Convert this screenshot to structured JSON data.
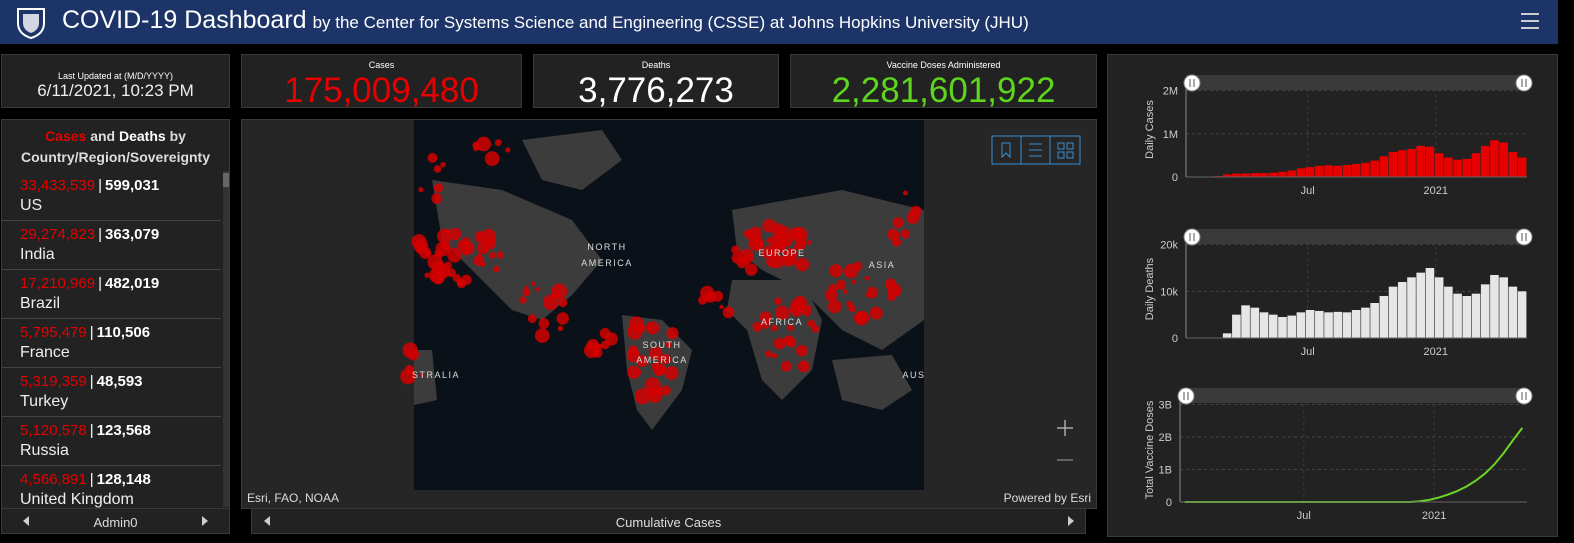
{
  "header": {
    "title": "COVID-19 Dashboard",
    "subtitle": "by the Center for Systems Science and Engineering (CSSE) at Johns Hopkins University (JHU)"
  },
  "last_updated": {
    "label": "Last Updated at (M/D/YYYY)",
    "value": "6/11/2021, 10:23 PM"
  },
  "stats": {
    "cases": {
      "label": "Cases",
      "value": "175,009,480"
    },
    "deaths": {
      "label": "Deaths",
      "value": "3,776,273"
    },
    "vaccines": {
      "label": "Vaccine Doses Administered",
      "value": "2,281,601,922"
    }
  },
  "country_list": {
    "title_cases": "Cases",
    "title_and": "and",
    "title_deaths": "Deaths",
    "title_rest": "by Country/Region/Sovereignty",
    "separator": "|",
    "rows": [
      {
        "cases": "33,433,539",
        "deaths": "599,031",
        "name": "US"
      },
      {
        "cases": "29,274,823",
        "deaths": "363,079",
        "name": "India"
      },
      {
        "cases": "17,210,969",
        "deaths": "482,019",
        "name": "Brazil"
      },
      {
        "cases": "5,795,479",
        "deaths": "110,506",
        "name": "France"
      },
      {
        "cases": "5,319,359",
        "deaths": "48,593",
        "name": "Turkey"
      },
      {
        "cases": "5,120,578",
        "deaths": "123,568",
        "name": "Russia"
      },
      {
        "cases": "4,566,891",
        "deaths": "128,148",
        "name": "United Kingdom"
      }
    ],
    "footer": "Admin0"
  },
  "map": {
    "labels": [
      "NORTH",
      "AMERICA",
      "EUROPE",
      "ASIA",
      "AFRICA",
      "SOUTH",
      "AMERICA",
      "STRALIA",
      "AUS"
    ],
    "attribution": "Esri, FAO, NOAA",
    "powered": "Powered by Esri",
    "tab": "Cumulative Cases"
  },
  "chart_data": [
    {
      "type": "bar",
      "ylabel": "Daily Cases",
      "color": "#e60000",
      "categories": [
        null,
        null,
        null,
        null,
        null,
        null,
        null,
        null,
        null,
        null,
        null,
        null,
        null,
        null,
        null,
        null,
        null,
        null,
        null,
        null,
        null,
        null,
        null,
        null,
        null,
        null,
        null,
        null,
        null,
        null,
        null,
        null,
        null,
        null,
        null,
        null,
        null
      ],
      "values": [
        500,
        2000,
        10000,
        20000,
        60000,
        80000,
        80000,
        90000,
        90000,
        100000,
        120000,
        150000,
        200000,
        230000,
        260000,
        270000,
        260000,
        280000,
        300000,
        330000,
        380000,
        480000,
        580000,
        620000,
        650000,
        720000,
        700000,
        550000,
        450000,
        400000,
        420000,
        550000,
        720000,
        850000,
        800000,
        580000,
        450000
      ],
      "xlim": [
        0,
        37
      ],
      "xticks": [
        {
          "value": 13.2,
          "label": "Jul"
        },
        {
          "value": 27.1,
          "label": "2021"
        }
      ],
      "ylim": [
        0,
        2200000
      ],
      "yticks": [
        0,
        {
          "value": 1000000,
          "label": "1M"
        },
        {
          "value": 2000000,
          "label": "2M"
        }
      ],
      "grid": true
    },
    {
      "type": "bar",
      "ylabel": "Daily Deaths",
      "color": "#e6e6e6",
      "categories": [
        null,
        null,
        null,
        null,
        null,
        null,
        null,
        null,
        null,
        null,
        null,
        null,
        null,
        null,
        null,
        null,
        null,
        null,
        null,
        null,
        null,
        null,
        null,
        null,
        null,
        null,
        null,
        null,
        null,
        null,
        null,
        null,
        null,
        null,
        null,
        null,
        null
      ],
      "values": [
        0,
        0,
        0,
        100,
        1000,
        5000,
        7000,
        6500,
        5500,
        5000,
        4500,
        4800,
        5500,
        6000,
        5800,
        5500,
        5600,
        5500,
        6000,
        6500,
        7500,
        9000,
        11000,
        12000,
        13000,
        14000,
        15000,
        13000,
        11000,
        9500,
        9000,
        9500,
        11500,
        13500,
        13000,
        11000,
        10000
      ],
      "xlim": [
        0,
        37
      ],
      "xticks": [
        {
          "value": 13.2,
          "label": "Jul"
        },
        {
          "value": 27.1,
          "label": "2021"
        }
      ],
      "ylim": [
        0,
        21000
      ],
      "yticks": [
        0,
        {
          "value": 10000,
          "label": "10k"
        },
        {
          "value": 20000,
          "label": "20k"
        }
      ],
      "grid": true
    },
    {
      "type": "line",
      "ylabel": "Total Vaccine Doses",
      "color": "#6bd425",
      "categories": [
        null,
        null,
        null,
        null,
        null,
        null,
        null,
        null,
        null,
        null,
        null,
        null,
        null,
        null,
        null,
        null,
        null,
        null,
        null,
        null,
        null,
        null,
        null,
        null,
        null,
        null,
        null,
        null,
        null,
        null,
        null,
        null,
        null,
        null,
        null,
        null,
        null
      ],
      "values": [
        0,
        0,
        0,
        0,
        0,
        0,
        0,
        0,
        0,
        0,
        0,
        0,
        0,
        0,
        0,
        0,
        0,
        0,
        0,
        0,
        0,
        0,
        0,
        0,
        1000000,
        20000000,
        60000000,
        130000000,
        220000000,
        330000000,
        470000000,
        650000000,
        870000000,
        1150000000,
        1500000000,
        1900000000,
        2280000000
      ],
      "xlim": [
        0,
        37
      ],
      "xticks": [
        {
          "value": 13.2,
          "label": "Jul"
        },
        {
          "value": 27.1,
          "label": "2021"
        }
      ],
      "ylim": [
        0,
        3200000000
      ],
      "yticks": [
        0,
        {
          "value": 1000000000,
          "label": "1B"
        },
        {
          "value": 2000000000,
          "label": "2B"
        },
        {
          "value": 3000000000,
          "label": "3B"
        }
      ],
      "grid": true
    }
  ]
}
